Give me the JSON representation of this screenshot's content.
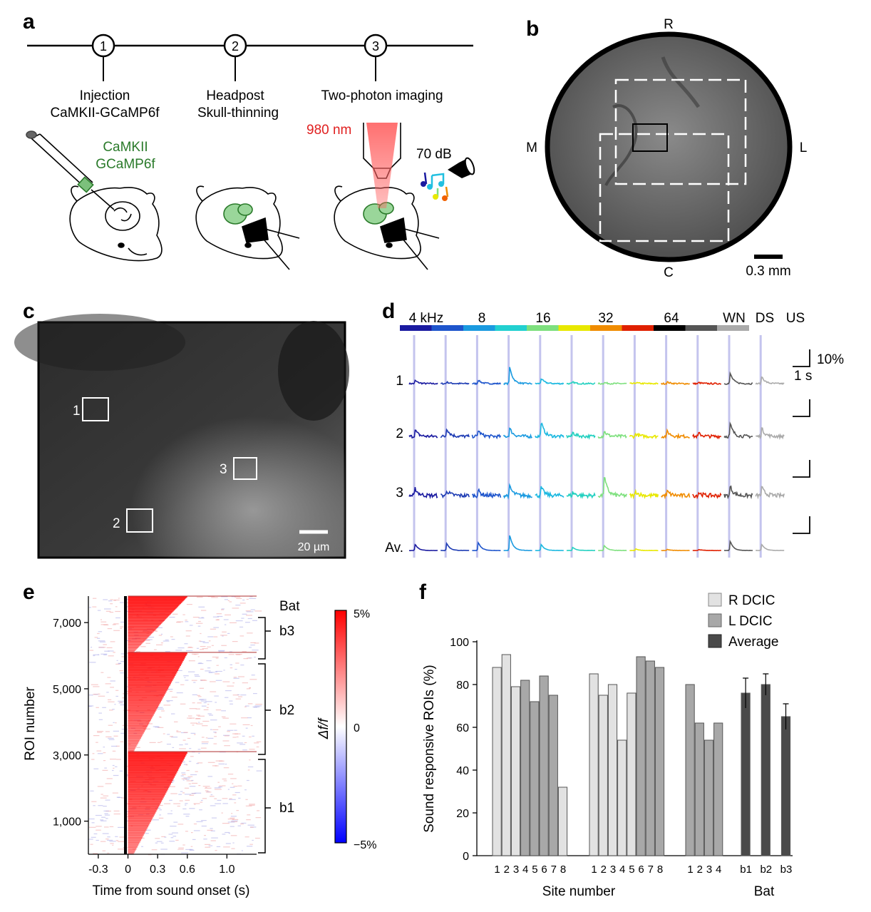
{
  "panels": {
    "a": "a",
    "b": "b",
    "c": "c",
    "d": "d",
    "e": "e",
    "f": "f"
  },
  "a": {
    "steps": [
      {
        "num": "1",
        "line1": "Injection",
        "line2": "CaMKII-GCaMP6f"
      },
      {
        "num": "2",
        "line1": "Headpost",
        "line2": "Skull-thinning"
      },
      {
        "num": "3",
        "line1": "Two-photon imaging",
        "line2": ""
      }
    ],
    "virus_line1": "CaMKII",
    "virus_line2": "GCaMP6f",
    "laser": "980 nm",
    "sound_level": "70 dB",
    "colors": {
      "virus": "#2a7a2a",
      "laser": "#e02020"
    }
  },
  "b": {
    "orient": {
      "top": "R",
      "bottom": "C",
      "left": "M",
      "right": "L"
    },
    "scalebar": "0.3 mm"
  },
  "c": {
    "rois": [
      "1",
      "2",
      "3"
    ],
    "scalebar": "20 µm"
  },
  "d": {
    "stim_labels": [
      "4 kHz",
      "8",
      "16",
      "32",
      "64",
      "WN",
      "DS",
      "US"
    ],
    "row_labels": [
      "1",
      "2",
      "3",
      "Av."
    ],
    "scale_y": "10%",
    "scale_x": "1 s",
    "stim_colors": [
      "#1a1aa0",
      "#1e55cc",
      "#1a9ae0",
      "#22d0d0",
      "#7ee07e",
      "#e8e800",
      "#f08c00",
      "#e02000",
      "#000000",
      "#555555",
      "#aaaaaa"
    ]
  },
  "e": {
    "ylabel": "ROI number",
    "xlabel": "Time from sound onset (s)",
    "yticks": [
      "7,000",
      "5,000",
      "3,000",
      "1,000"
    ],
    "xticks": [
      "-0.3",
      "0",
      "0.3",
      "0.6",
      "1.0"
    ],
    "group_title": "Bat",
    "groups": [
      "b3",
      "b2",
      "b1"
    ],
    "cbar_label": "Δf/f",
    "cbar_ticks": [
      "5%",
      "0",
      "−5%"
    ]
  },
  "f": {
    "legend": [
      "R DCIC",
      "L DCIC",
      "Average"
    ],
    "ylabel": "Sound responsive ROIs (%)",
    "xlabel": "Site number",
    "bat_label": "Bat",
    "chart_data": {
      "type": "bar",
      "ylabel": "Sound responsive ROIs (%)",
      "ylim": [
        0,
        100
      ],
      "yticks": [
        "0",
        "20",
        "40",
        "60",
        "80",
        "100"
      ],
      "groups": [
        {
          "sites": [
            "1",
            "2",
            "3",
            "4",
            "5",
            "6",
            "7",
            "8"
          ],
          "values": [
            88,
            94,
            79,
            82,
            72,
            84,
            75,
            32
          ],
          "hemi": [
            "R",
            "R",
            "R",
            "L",
            "L",
            "L",
            "L",
            "R"
          ]
        },
        {
          "sites": [
            "1",
            "2",
            "3",
            "4",
            "5",
            "6",
            "7",
            "8"
          ],
          "values": [
            85,
            75,
            80,
            54,
            76,
            93,
            91,
            88
          ],
          "hemi": [
            "R",
            "R",
            "R",
            "R",
            "R",
            "L",
            "L",
            "L"
          ]
        },
        {
          "sites": [
            "1",
            "2",
            "3",
            "4"
          ],
          "values": [
            80,
            62,
            54,
            62
          ],
          "hemi": [
            "L",
            "L",
            "L",
            "L"
          ]
        },
        {
          "sites": [
            "b1",
            "b2",
            "b3"
          ],
          "values": [
            76,
            80,
            65
          ],
          "errors": [
            7,
            5,
            6
          ],
          "hemi": [
            "A",
            "A",
            "A"
          ]
        }
      ],
      "colors": {
        "R": "#e2e2e2",
        "L": "#a8a8a8",
        "A": "#4a4a4a"
      }
    }
  }
}
